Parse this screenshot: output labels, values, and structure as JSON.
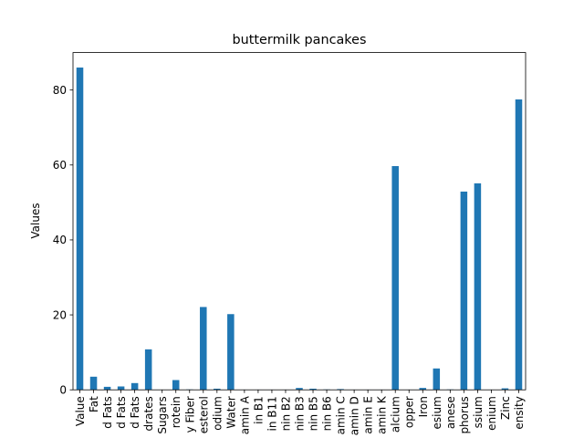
{
  "chart_data": {
    "type": "bar",
    "title": "buttermilk pancakes",
    "xlabel": "",
    "ylabel": "Values",
    "ylim": [
      0,
      90
    ],
    "yticks": [
      0,
      20,
      40,
      60,
      80
    ],
    "grid": false,
    "bar_color": "#1f77b4",
    "categories": [
      "Value",
      "Fat",
      "d Fats",
      "d Fats",
      "d Fats",
      "drates",
      "Sugars",
      "rotein",
      "y Fiber",
      "esterol",
      "odium",
      "Water",
      "amin A",
      "in B1",
      "in B11",
      "nin B2",
      "nin B3",
      "nin B5",
      "nin B6",
      "amin C",
      "amin D",
      "amin E",
      "amin K",
      "alcium",
      "opper",
      "Iron",
      "esium",
      "anese",
      "phorus",
      "ssium",
      "enium",
      "Zinc",
      "ensity"
    ],
    "values": [
      86,
      3.5,
      0.8,
      0.9,
      1.8,
      10.8,
      0,
      2.6,
      0.1,
      22.1,
      0.3,
      20.2,
      0.05,
      0.05,
      0.05,
      0.05,
      0.5,
      0.3,
      0.1,
      0.2,
      0.05,
      0.05,
      0.05,
      59.7,
      0.05,
      0.5,
      5.7,
      0.1,
      52.9,
      55.1,
      0.05,
      0.4,
      77.5
    ]
  }
}
